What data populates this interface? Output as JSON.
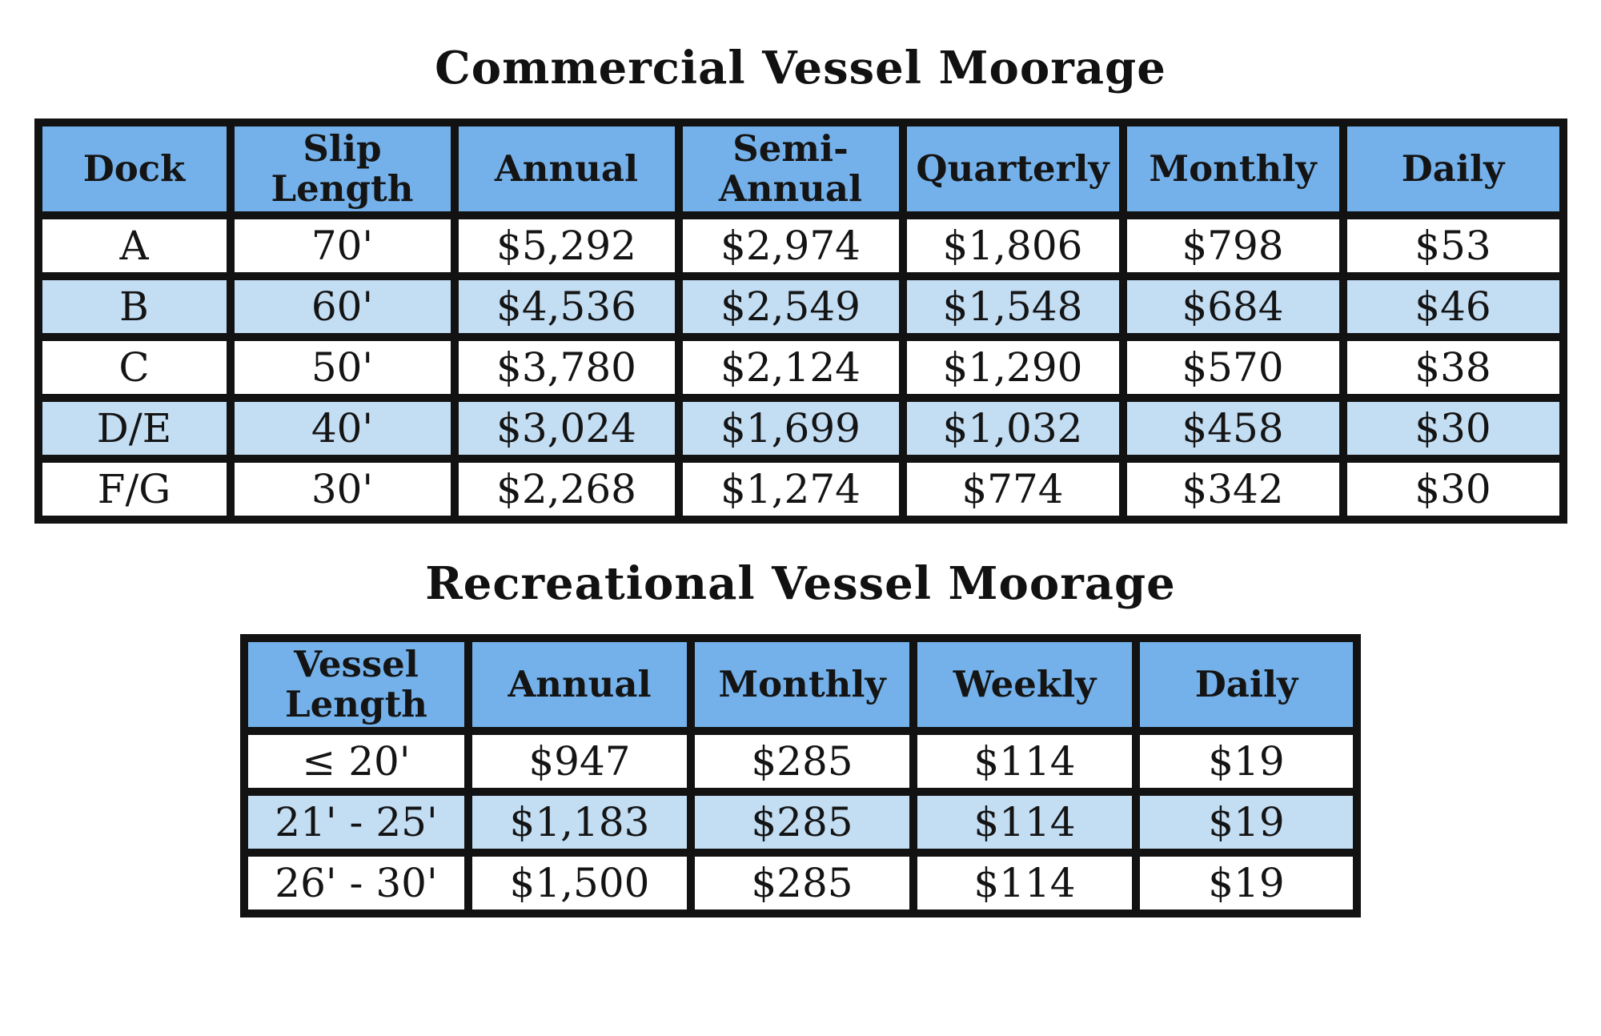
{
  "colors": {
    "header_blue": "#74b1ea",
    "stripe_blue": "#c3ddf3",
    "border_black": "#121212",
    "text": "#141414",
    "page_background": "#ffffff"
  },
  "commercial": {
    "title": "Commercial Vessel Moorage",
    "columns": [
      "Dock",
      "Slip Length",
      "Annual",
      "Semi-Annual",
      "Quarterly",
      "Monthly",
      "Daily"
    ],
    "rows": [
      [
        "A",
        "70'",
        "$5,292",
        "$2,974",
        "$1,806",
        "$798",
        "$53"
      ],
      [
        "B",
        "60'",
        "$4,536",
        "$2,549",
        "$1,548",
        "$684",
        "$46"
      ],
      [
        "C",
        "50'",
        "$3,780",
        "$2,124",
        "$1,290",
        "$570",
        "$38"
      ],
      [
        "D/E",
        "40'",
        "$3,024",
        "$1,699",
        "$1,032",
        "$458",
        "$30"
      ],
      [
        "F/G",
        "30'",
        "$2,268",
        "$1,274",
        "$774",
        "$342",
        "$30"
      ]
    ]
  },
  "recreational": {
    "title": "Recreational Vessel Moorage",
    "columns": [
      "Vessel Length",
      "Annual",
      "Monthly",
      "Weekly",
      "Daily"
    ],
    "rows": [
      [
        "≤ 20'",
        "$947",
        "$285",
        "$114",
        "$19"
      ],
      [
        "21' - 25'",
        "$1,183",
        "$285",
        "$114",
        "$19"
      ],
      [
        "26' - 30'",
        "$1,500",
        "$285",
        "$114",
        "$19"
      ]
    ]
  }
}
